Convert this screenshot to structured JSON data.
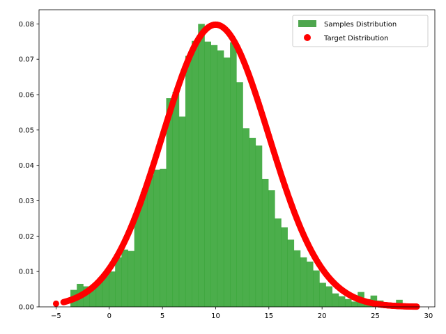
{
  "chart_data": {
    "type": "histogram",
    "title": "",
    "xlabel": "",
    "ylabel": "",
    "xlim": [
      -6.6,
      30.6
    ],
    "ylim": [
      0,
      0.084
    ],
    "grid": false,
    "legend_position": "top-right",
    "x_ticks": [
      -5,
      0,
      5,
      10,
      15,
      20,
      25,
      30
    ],
    "x_tick_labels": [
      "−5",
      "0",
      "5",
      "10",
      "15",
      "20",
      "25",
      "30"
    ],
    "y_ticks": [
      0.0,
      0.01,
      0.02,
      0.03,
      0.04,
      0.05,
      0.06,
      0.07,
      0.08
    ],
    "y_tick_labels": [
      "0.00",
      "0.01",
      "0.02",
      "0.03",
      "0.04",
      "0.05",
      "0.06",
      "0.07",
      "0.08"
    ],
    "histogram": {
      "name": "Samples Distribution",
      "color": "#2ca02c",
      "opacity": 0.85,
      "bin_start": -3.65,
      "bin_width": 0.6,
      "values": [
        0.0048,
        0.0065,
        0.0058,
        0.006,
        0.007,
        0.009,
        0.01,
        0.014,
        0.0162,
        0.0158,
        0.027,
        0.0325,
        0.0372,
        0.0388,
        0.039,
        0.059,
        0.0608,
        0.0538,
        0.071,
        0.0752,
        0.08,
        0.075,
        0.074,
        0.0725,
        0.0705,
        0.0748,
        0.0635,
        0.0505,
        0.0478,
        0.0456,
        0.0362,
        0.033,
        0.025,
        0.0225,
        0.019,
        0.016,
        0.014,
        0.0128,
        0.0103,
        0.0068,
        0.0058,
        0.0038,
        0.003,
        0.0022,
        0.0015,
        0.0042,
        0.0022,
        0.0032,
        0.0018,
        0.0008,
        0.0005,
        0.002,
        0.0008
      ]
    },
    "target": {
      "name": "Target Distribution",
      "type": "scatter",
      "color": "#ff0000",
      "function": "normal_pdf",
      "mean": 10,
      "std": 5,
      "x_range": [
        -4.3,
        28.9
      ],
      "outlier_points": [
        [
          -5.0,
          0.0009
        ]
      ]
    },
    "legend": [
      {
        "label": "Samples Distribution",
        "marker": "patch",
        "color": "#4ea64e"
      },
      {
        "label": "Target Distribution",
        "marker": "dot",
        "color": "#ff0000"
      }
    ]
  }
}
